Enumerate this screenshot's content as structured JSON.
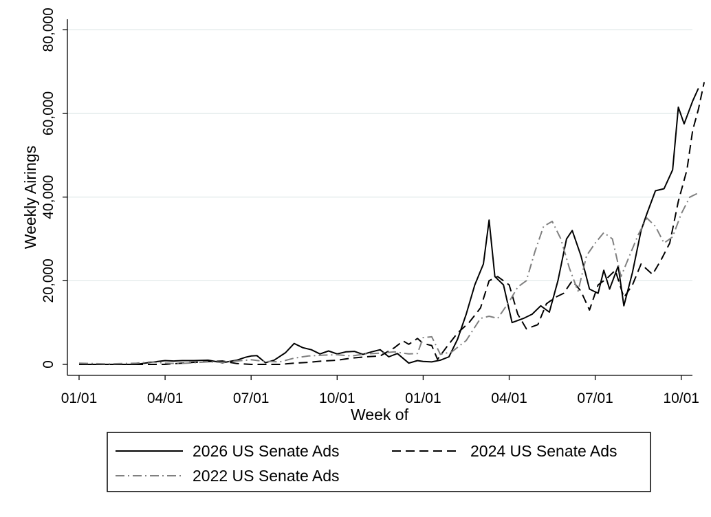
{
  "chart_data": {
    "type": "line",
    "title": "",
    "xlabel": "Week of",
    "ylabel": "Weekly Airings",
    "x_tick_labels": [
      "01/01",
      "04/01",
      "07/01",
      "10/01",
      "01/01",
      "04/01",
      "07/01",
      "10/01"
    ],
    "x_tick_months": [
      0,
      3,
      6,
      9,
      12,
      15,
      18,
      21
    ],
    "xlim_months": [
      0,
      21
    ],
    "y_ticks": [
      0,
      20000,
      40000,
      60000,
      80000
    ],
    "y_tick_labels": [
      "0",
      "20,000",
      "40,000",
      "60,000",
      "80,000"
    ],
    "ylim": [
      0,
      80000
    ],
    "grid": "horizontal",
    "legend_position": "bottom",
    "series": [
      {
        "name": "2026 US Senate Ads",
        "style": "solid",
        "color": "#000000",
        "points": [
          [
            0.0,
            0
          ],
          [
            0.5,
            0
          ],
          [
            1.0,
            0
          ],
          [
            1.5,
            0
          ],
          [
            2.0,
            0
          ],
          [
            2.5,
            500
          ],
          [
            3.0,
            900
          ],
          [
            3.3,
            800
          ],
          [
            3.6,
            900
          ],
          [
            4.0,
            900
          ],
          [
            4.5,
            1000
          ],
          [
            5.0,
            400
          ],
          [
            5.5,
            1000
          ],
          [
            5.8,
            1700
          ],
          [
            6.0,
            2000
          ],
          [
            6.2,
            2100
          ],
          [
            6.5,
            400
          ],
          [
            6.8,
            1000
          ],
          [
            7.2,
            2800
          ],
          [
            7.5,
            5000
          ],
          [
            7.8,
            4000
          ],
          [
            8.1,
            3500
          ],
          [
            8.4,
            2500
          ],
          [
            8.7,
            3200
          ],
          [
            9.0,
            2500
          ],
          [
            9.3,
            3000
          ],
          [
            9.6,
            3100
          ],
          [
            9.9,
            2400
          ],
          [
            10.2,
            3000
          ],
          [
            10.5,
            3500
          ],
          [
            10.8,
            1800
          ],
          [
            11.1,
            2600
          ],
          [
            11.5,
            300
          ],
          [
            11.8,
            900
          ],
          [
            12.0,
            700
          ],
          [
            12.3,
            600
          ],
          [
            12.6,
            1000
          ],
          [
            12.9,
            1800
          ],
          [
            13.2,
            6000
          ],
          [
            13.5,
            12000
          ],
          [
            13.8,
            19000
          ],
          [
            14.1,
            24000
          ],
          [
            14.3,
            34500
          ],
          [
            14.5,
            21000
          ],
          [
            14.8,
            19000
          ],
          [
            15.1,
            10000
          ],
          [
            15.5,
            11000
          ],
          [
            15.8,
            12000
          ],
          [
            16.1,
            14000
          ],
          [
            16.4,
            12500
          ],
          [
            16.7,
            20000
          ],
          [
            17.0,
            30000
          ],
          [
            17.2,
            32000
          ],
          [
            17.5,
            26000
          ],
          [
            17.8,
            18000
          ],
          [
            18.1,
            17000
          ],
          [
            18.3,
            22500
          ],
          [
            18.5,
            18000
          ],
          [
            18.8,
            23500
          ],
          [
            19.0,
            14000
          ],
          [
            19.3,
            22000
          ],
          [
            19.6,
            32000
          ],
          [
            19.8,
            36000
          ],
          [
            20.1,
            41500
          ],
          [
            20.4,
            42000
          ],
          [
            20.7,
            46500
          ],
          [
            20.9,
            61500
          ],
          [
            21.1,
            57500
          ],
          [
            21.4,
            63000
          ],
          [
            21.6,
            66000
          ]
        ]
      },
      {
        "name": "2024 US Senate Ads",
        "style": "dashed",
        "color": "#000000",
        "points": [
          [
            0.0,
            0
          ],
          [
            1.0,
            0
          ],
          [
            2.0,
            0
          ],
          [
            3.0,
            0
          ],
          [
            4.0,
            500
          ],
          [
            5.0,
            800
          ],
          [
            5.5,
            200
          ],
          [
            6.0,
            0
          ],
          [
            7.0,
            0
          ],
          [
            7.5,
            300
          ],
          [
            8.0,
            500
          ],
          [
            8.5,
            800
          ],
          [
            9.0,
            1000
          ],
          [
            9.5,
            1500
          ],
          [
            10.0,
            1800
          ],
          [
            10.5,
            2000
          ],
          [
            11.0,
            4000
          ],
          [
            11.3,
            5600
          ],
          [
            11.5,
            4800
          ],
          [
            11.8,
            6200
          ],
          [
            12.0,
            5000
          ],
          [
            12.3,
            4500
          ],
          [
            12.5,
            1200
          ],
          [
            12.8,
            4000
          ],
          [
            13.2,
            7500
          ],
          [
            13.6,
            10000
          ],
          [
            14.0,
            13500
          ],
          [
            14.3,
            20000
          ],
          [
            14.6,
            21000
          ],
          [
            15.0,
            19000
          ],
          [
            15.3,
            12000
          ],
          [
            15.6,
            8500
          ],
          [
            16.0,
            9500
          ],
          [
            16.3,
            14500
          ],
          [
            16.6,
            16000
          ],
          [
            16.9,
            17000
          ],
          [
            17.2,
            20000
          ],
          [
            17.5,
            17500
          ],
          [
            17.8,
            13000
          ],
          [
            18.1,
            19000
          ],
          [
            18.4,
            20500
          ],
          [
            18.7,
            22500
          ],
          [
            19.0,
            16000
          ],
          [
            19.3,
            19000
          ],
          [
            19.6,
            24000
          ],
          [
            20.0,
            21500
          ],
          [
            20.3,
            25000
          ],
          [
            20.6,
            29000
          ],
          [
            20.9,
            39000
          ],
          [
            21.2,
            46500
          ],
          [
            21.4,
            56000
          ],
          [
            21.6,
            61000
          ],
          [
            21.8,
            67500
          ]
        ]
      },
      {
        "name": "2022 US Senate Ads",
        "style": "dash-dot",
        "color": "#808080",
        "points": [
          [
            0.0,
            300
          ],
          [
            0.5,
            200
          ],
          [
            1.0,
            100
          ],
          [
            1.5,
            200
          ],
          [
            2.0,
            300
          ],
          [
            2.5,
            600
          ],
          [
            3.0,
            300
          ],
          [
            3.5,
            200
          ],
          [
            4.0,
            400
          ],
          [
            4.5,
            600
          ],
          [
            5.0,
            500
          ],
          [
            5.5,
            800
          ],
          [
            6.0,
            1100
          ],
          [
            6.5,
            700
          ],
          [
            7.0,
            600
          ],
          [
            7.5,
            1500
          ],
          [
            8.0,
            2000
          ],
          [
            8.5,
            2200
          ],
          [
            9.0,
            2300
          ],
          [
            9.5,
            2000
          ],
          [
            10.0,
            2500
          ],
          [
            10.5,
            2700
          ],
          [
            11.0,
            3000
          ],
          [
            11.5,
            2500
          ],
          [
            11.8,
            2600
          ],
          [
            12.0,
            6400
          ],
          [
            12.3,
            6600
          ],
          [
            12.6,
            2400
          ],
          [
            13.0,
            3000
          ],
          [
            13.5,
            5700
          ],
          [
            14.0,
            11000
          ],
          [
            14.3,
            11500
          ],
          [
            14.6,
            11000
          ],
          [
            15.0,
            15000
          ],
          [
            15.3,
            18500
          ],
          [
            15.6,
            20000
          ],
          [
            15.9,
            27000
          ],
          [
            16.2,
            33000
          ],
          [
            16.5,
            34200
          ],
          [
            16.8,
            30000
          ],
          [
            17.1,
            23000
          ],
          [
            17.4,
            17500
          ],
          [
            17.7,
            26000
          ],
          [
            18.0,
            29000
          ],
          [
            18.3,
            31500
          ],
          [
            18.6,
            30000
          ],
          [
            18.9,
            21000
          ],
          [
            19.2,
            26000
          ],
          [
            19.5,
            31000
          ],
          [
            19.8,
            35000
          ],
          [
            20.1,
            33000
          ],
          [
            20.4,
            29000
          ],
          [
            20.7,
            30500
          ],
          [
            21.0,
            36000
          ],
          [
            21.3,
            40000
          ],
          [
            21.6,
            41000
          ]
        ]
      }
    ]
  }
}
